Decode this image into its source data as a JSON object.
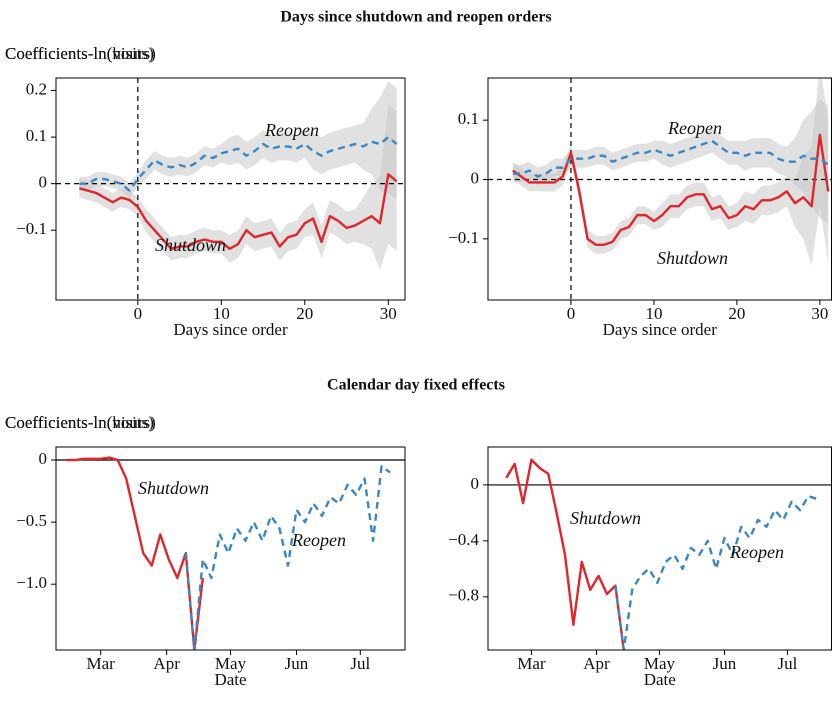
{
  "figure": {
    "titles": [
      "Days since shutdown and reopen orders",
      "Calendar day fixed effects"
    ]
  },
  "chart_data": [
    {
      "type": "line",
      "ylabel": "Coefficients-ln(hours)",
      "xlabel": "Days since order",
      "x": [
        -7,
        -6,
        -5,
        -4,
        -3,
        -2,
        -1,
        0,
        1,
        2,
        3,
        4,
        5,
        6,
        7,
        8,
        9,
        10,
        11,
        12,
        13,
        14,
        15,
        16,
        17,
        18,
        19,
        20,
        21,
        22,
        23,
        24,
        25,
        26,
        27,
        28,
        29,
        30,
        31
      ],
      "xlim": [
        -9.8,
        32
      ],
      "xticks": [
        0,
        10,
        20,
        30
      ],
      "ylim": [
        -0.25,
        0.227
      ],
      "yticks": [
        {
          "value": -0.1,
          "label": "−0.1"
        },
        0,
        0.1,
        0.2
      ],
      "ref_lines": {
        "x": 0,
        "y": 0,
        "dashed": true
      },
      "series": [
        {
          "name": "Shutdown",
          "color": "#e0252b",
          "dashed": false,
          "values": [
            -0.01,
            -0.015,
            -0.02,
            -0.03,
            -0.04,
            -0.03,
            -0.035,
            -0.05,
            -0.08,
            -0.1,
            -0.12,
            -0.14,
            -0.135,
            -0.135,
            -0.125,
            -0.12,
            -0.125,
            -0.125,
            -0.14,
            -0.13,
            -0.1,
            -0.115,
            -0.11,
            -0.105,
            -0.135,
            -0.115,
            -0.11,
            -0.085,
            -0.075,
            -0.125,
            -0.07,
            -0.08,
            -0.095,
            -0.09,
            -0.08,
            -0.07,
            -0.085,
            0.02,
            0.005
          ],
          "errors": [
            0.02,
            0.02,
            0.02,
            0.02,
            0.02,
            0.02,
            0.02,
            0.02,
            0.025,
            0.025,
            0.025,
            0.025,
            0.025,
            0.025,
            0.025,
            0.025,
            0.025,
            0.025,
            0.03,
            0.03,
            0.03,
            0.03,
            0.03,
            0.03,
            0.03,
            0.03,
            0.03,
            0.03,
            0.035,
            0.035,
            0.035,
            0.035,
            0.035,
            0.035,
            0.05,
            0.07,
            0.1,
            0.15,
            0.15
          ]
        },
        {
          "name": "Reopen",
          "color": "#3a87c4",
          "dashed": true,
          "values": [
            0,
            0,
            0.01,
            0.01,
            0.005,
            0,
            -0.015,
            0.01,
            0.03,
            0.05,
            0.04,
            0.035,
            0.04,
            0.035,
            0.045,
            0.06,
            0.055,
            0.065,
            0.07,
            0.075,
            0.06,
            0.07,
            0.085,
            0.075,
            0.08,
            0.08,
            0.075,
            0.085,
            0.07,
            0.06,
            0.07,
            0.075,
            0.08,
            0.085,
            0.08,
            0.09,
            0.085,
            0.1,
            0.085
          ],
          "errors": [
            0.015,
            0.015,
            0.015,
            0.015,
            0.015,
            0.015,
            0.015,
            0.015,
            0.02,
            0.02,
            0.02,
            0.02,
            0.02,
            0.02,
            0.02,
            0.02,
            0.02,
            0.02,
            0.03,
            0.03,
            0.03,
            0.03,
            0.03,
            0.03,
            0.03,
            0.03,
            0.03,
            0.03,
            0.04,
            0.04,
            0.04,
            0.04,
            0.04,
            0.04,
            0.05,
            0.07,
            0.1,
            0.12,
            0.12
          ]
        }
      ]
    },
    {
      "type": "line",
      "ylabel": "Coefficients-ln(visits)",
      "xlabel": "Days since order",
      "x": [
        -7,
        -6,
        -5,
        -4,
        -3,
        -2,
        -1,
        0,
        1,
        2,
        3,
        4,
        5,
        6,
        7,
        8,
        9,
        10,
        11,
        12,
        13,
        14,
        15,
        16,
        17,
        18,
        19,
        20,
        21,
        22,
        23,
        24,
        25,
        26,
        27,
        28,
        29,
        30,
        31
      ],
      "xlim": [
        -10,
        31.4
      ],
      "xticks": [
        0,
        10,
        20,
        30
      ],
      "ylim": [
        -0.203,
        0.171
      ],
      "yticks": [
        {
          "value": -0.1,
          "label": "−0.1"
        },
        0,
        0.1
      ],
      "ref_lines": {
        "x": 0,
        "y": 0,
        "dashed": true
      },
      "series": [
        {
          "name": "Shutdown",
          "color": "#e0252b",
          "dashed": false,
          "values": [
            0.015,
            0.005,
            -0.005,
            -0.005,
            -0.005,
            -0.005,
            0.005,
            0.045,
            -0.02,
            -0.1,
            -0.11,
            -0.11,
            -0.105,
            -0.085,
            -0.08,
            -0.06,
            -0.06,
            -0.07,
            -0.06,
            -0.045,
            -0.045,
            -0.03,
            -0.025,
            -0.025,
            -0.05,
            -0.045,
            -0.065,
            -0.06,
            -0.045,
            -0.05,
            -0.035,
            -0.035,
            -0.03,
            -0.02,
            -0.04,
            -0.03,
            -0.045,
            0.075,
            -0.02
          ],
          "errors": [
            0.015,
            0.015,
            0.015,
            0.015,
            0.015,
            0.015,
            0.015,
            0.015,
            0.015,
            0.015,
            0.015,
            0.015,
            0.015,
            0.015,
            0.015,
            0.015,
            0.015,
            0.015,
            0.02,
            0.02,
            0.02,
            0.02,
            0.02,
            0.02,
            0.02,
            0.02,
            0.02,
            0.02,
            0.025,
            0.025,
            0.025,
            0.025,
            0.025,
            0.025,
            0.04,
            0.07,
            0.1,
            0.12,
            0.12
          ]
        },
        {
          "name": "Reopen",
          "color": "#3a87c4",
          "dashed": true,
          "values": [
            0.01,
            0.01,
            0.015,
            0.005,
            0.01,
            0.02,
            0.02,
            0.035,
            0.035,
            0.035,
            0.04,
            0.04,
            0.03,
            0.035,
            0.04,
            0.045,
            0.045,
            0.05,
            0.045,
            0.04,
            0.045,
            0.05,
            0.055,
            0.06,
            0.065,
            0.055,
            0.045,
            0.045,
            0.04,
            0.045,
            0.045,
            0.045,
            0.035,
            0.03,
            0.03,
            0.04,
            0.035,
            0.035,
            0.025
          ],
          "errors": [
            0.015,
            0.015,
            0.015,
            0.015,
            0.015,
            0.015,
            0.015,
            0.015,
            0.015,
            0.015,
            0.015,
            0.015,
            0.015,
            0.015,
            0.015,
            0.015,
            0.015,
            0.015,
            0.02,
            0.02,
            0.02,
            0.02,
            0.02,
            0.02,
            0.02,
            0.02,
            0.02,
            0.02,
            0.025,
            0.025,
            0.025,
            0.025,
            0.025,
            0.025,
            0.04,
            0.06,
            0.08,
            0.1,
            0.1
          ]
        }
      ]
    },
    {
      "type": "line",
      "ylabel": "Coefficients-ln(hours)",
      "xlabel": "Date",
      "x": [
        -16,
        -12,
        -8,
        -4,
        0,
        4,
        8,
        12,
        16,
        20,
        24,
        28,
        32,
        36,
        40,
        44,
        48,
        52,
        56,
        60,
        64,
        68,
        72,
        76,
        80,
        84,
        88,
        92,
        96,
        100,
        104,
        108,
        112,
        116,
        120,
        124,
        128,
        132,
        136
      ],
      "xlim": [
        -21,
        143
      ],
      "xticks": [
        {
          "value": 0,
          "label": "Mar"
        },
        {
          "value": 31,
          "label": "Apr"
        },
        {
          "value": 61,
          "label": "May"
        },
        {
          "value": 92,
          "label": "Jun"
        },
        {
          "value": 122,
          "label": "Jul"
        }
      ],
      "ylim": [
        -1.53,
        0.105
      ],
      "yticks": [
        {
          "value": -1.0,
          "label": "−1.0"
        },
        {
          "value": -0.5,
          "label": "−0.5"
        },
        0
      ],
      "ref_lines": {
        "y": 0,
        "dashed": false
      },
      "series": [
        {
          "name": "Shutdown",
          "color": "#e0252b",
          "dashed": false,
          "values": [
            0,
            0,
            0.01,
            0.01,
            0.01,
            0.02,
            0,
            -0.15,
            -0.45,
            -0.75,
            -0.85,
            -0.6,
            -0.8,
            -0.95,
            -0.75,
            -1.53,
            -0.95,
            null,
            null,
            null,
            null,
            null,
            null,
            null,
            null,
            null,
            null,
            null,
            null,
            null,
            null,
            null,
            null,
            null,
            null,
            null,
            null,
            null,
            null
          ]
        },
        {
          "name": "Reopen",
          "color": "#3a87c4",
          "dashed": true,
          "values": [
            null,
            null,
            null,
            null,
            null,
            null,
            null,
            null,
            null,
            null,
            null,
            null,
            null,
            null,
            -0.75,
            -1.53,
            -0.8,
            -0.95,
            -0.6,
            -0.75,
            -0.55,
            -0.65,
            -0.5,
            -0.65,
            -0.45,
            -0.55,
            -0.85,
            -0.4,
            -0.5,
            -0.35,
            -0.45,
            -0.3,
            -0.35,
            -0.2,
            -0.28,
            -0.15,
            -0.65,
            -0.05,
            -0.1
          ]
        }
      ]
    },
    {
      "type": "line",
      "ylabel": "Coefficients-ln(visits)",
      "xlabel": "Date",
      "x": [
        -12,
        -8,
        -4,
        0,
        4,
        8,
        12,
        16,
        20,
        24,
        28,
        32,
        36,
        40,
        44,
        48,
        52,
        56,
        60,
        64,
        68,
        72,
        76,
        80,
        84,
        88,
        92,
        96,
        100,
        104,
        108,
        112,
        116,
        120,
        124,
        128,
        132,
        136
      ],
      "xlim": [
        -20.7,
        143
      ],
      "xticks": [
        {
          "value": 0,
          "label": "Mar"
        },
        {
          "value": 31,
          "label": "Apr"
        },
        {
          "value": 61,
          "label": "May"
        },
        {
          "value": 92,
          "label": "Jun"
        },
        {
          "value": 122,
          "label": "Jul"
        }
      ],
      "ylim": [
        -1.18,
        0.271
      ],
      "yticks": [
        {
          "value": -0.8,
          "label": "−0.8"
        },
        {
          "value": -0.4,
          "label": "−0.4"
        },
        0
      ],
      "ref_lines": {
        "y": 0,
        "dashed": false
      },
      "series": [
        {
          "name": "Shutdown",
          "color": "#e0252b",
          "dashed": false,
          "values": [
            0.05,
            0.15,
            -0.13,
            0.18,
            0.12,
            0.08,
            -0.2,
            -0.5,
            -1.0,
            -0.55,
            -0.75,
            -0.65,
            -0.78,
            -0.72,
            -1.18,
            null,
            null,
            null,
            null,
            null,
            null,
            null,
            null,
            null,
            null,
            null,
            null,
            null,
            null,
            null,
            null,
            null,
            null,
            null,
            null,
            null,
            null,
            null
          ]
        },
        {
          "name": "Reopen",
          "color": "#3a87c4",
          "dashed": true,
          "values": [
            null,
            null,
            null,
            null,
            null,
            null,
            null,
            null,
            null,
            null,
            null,
            null,
            null,
            -0.72,
            -1.18,
            -0.75,
            -0.65,
            -0.6,
            -0.7,
            -0.55,
            -0.5,
            -0.6,
            -0.45,
            -0.5,
            -0.4,
            -0.6,
            -0.38,
            -0.5,
            -0.3,
            -0.38,
            -0.25,
            -0.3,
            -0.18,
            -0.25,
            -0.12,
            -0.18,
            -0.08,
            -0.1
          ]
        }
      ]
    }
  ]
}
